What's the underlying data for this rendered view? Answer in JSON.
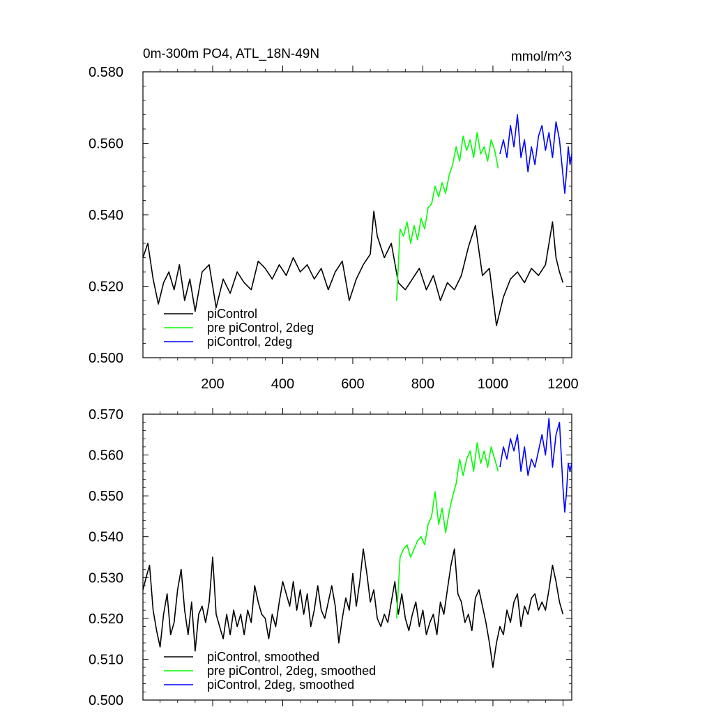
{
  "chart_data": [
    {
      "type": "line",
      "title": "0m-300m PO4, ATL_18N-49N",
      "units": "mmol/m^3",
      "xlim": [
        1,
        1225
      ],
      "ylim": [
        0.5,
        0.58
      ],
      "xticks": [
        200,
        400,
        600,
        800,
        1000,
        1200
      ],
      "xtick_labels": [
        "200",
        "400",
        "600",
        "800",
        "1000",
        "1200"
      ],
      "yticks": [
        0.5,
        0.52,
        0.54,
        0.56,
        0.58
      ],
      "ytick_labels": [
        "0.500",
        "0.520",
        "0.540",
        "0.560",
        "0.580"
      ],
      "legend_position": "bottom-left",
      "series": [
        {
          "name": "piControl",
          "color": "#000000",
          "x": [
            1,
            15,
            30,
            45,
            60,
            75,
            90,
            105,
            120,
            135,
            150,
            170,
            190,
            210,
            230,
            250,
            270,
            290,
            310,
            330,
            350,
            370,
            390,
            410,
            430,
            450,
            470,
            490,
            510,
            530,
            550,
            570,
            590,
            610,
            630,
            650,
            660,
            670,
            690,
            710,
            730,
            750,
            770,
            790,
            810,
            830,
            850,
            870,
            890,
            910,
            930,
            950,
            970,
            990,
            1010,
            1030,
            1050,
            1070,
            1090,
            1110,
            1130,
            1150,
            1170,
            1180,
            1190,
            1200
          ],
          "y": [
            0.528,
            0.532,
            0.522,
            0.515,
            0.521,
            0.524,
            0.519,
            0.526,
            0.516,
            0.522,
            0.513,
            0.524,
            0.526,
            0.514,
            0.522,
            0.518,
            0.524,
            0.521,
            0.519,
            0.527,
            0.525,
            0.522,
            0.526,
            0.523,
            0.528,
            0.524,
            0.526,
            0.522,
            0.525,
            0.519,
            0.524,
            0.527,
            0.516,
            0.522,
            0.526,
            0.529,
            0.541,
            0.534,
            0.528,
            0.532,
            0.521,
            0.519,
            0.522,
            0.525,
            0.519,
            0.523,
            0.516,
            0.521,
            0.519,
            0.523,
            0.531,
            0.537,
            0.523,
            0.525,
            0.509,
            0.517,
            0.522,
            0.524,
            0.521,
            0.525,
            0.523,
            0.526,
            0.538,
            0.528,
            0.524,
            0.521
          ]
        },
        {
          "name": "pre piControl, 2deg",
          "color": "#00ff00",
          "x": [
            725,
            735,
            745,
            755,
            765,
            775,
            785,
            795,
            805,
            815,
            825,
            835,
            845,
            855,
            865,
            875,
            885,
            895,
            905,
            915,
            925,
            935,
            945,
            955,
            965,
            975,
            985,
            995,
            1005,
            1015
          ],
          "y": [
            0.516,
            0.536,
            0.534,
            0.538,
            0.532,
            0.537,
            0.533,
            0.539,
            0.536,
            0.542,
            0.543,
            0.548,
            0.545,
            0.549,
            0.546,
            0.551,
            0.554,
            0.559,
            0.555,
            0.562,
            0.558,
            0.561,
            0.556,
            0.563,
            0.557,
            0.559,
            0.555,
            0.561,
            0.558,
            0.553
          ]
        },
        {
          "name": "piControl, 2deg",
          "color": "#0000ff",
          "x": [
            1020,
            1030,
            1040,
            1050,
            1060,
            1070,
            1080,
            1090,
            1100,
            1110,
            1120,
            1130,
            1140,
            1150,
            1160,
            1170,
            1180,
            1190,
            1200,
            1205,
            1210,
            1215,
            1220,
            1225
          ],
          "y": [
            0.557,
            0.561,
            0.556,
            0.565,
            0.559,
            0.568,
            0.556,
            0.561,
            0.552,
            0.559,
            0.554,
            0.562,
            0.565,
            0.558,
            0.563,
            0.556,
            0.566,
            0.561,
            0.551,
            0.546,
            0.552,
            0.559,
            0.554,
            0.557
          ]
        }
      ],
      "legend": [
        "piControl",
        "pre piControl, 2deg",
        "piControl, 2deg"
      ]
    },
    {
      "type": "line",
      "title": "",
      "units": "",
      "xlim": [
        1,
        1225
      ],
      "ylim": [
        0.5,
        0.57
      ],
      "xticks": [
        200,
        400,
        600,
        800,
        1000,
        1200
      ],
      "xtick_labels": [],
      "yticks": [
        0.5,
        0.51,
        0.52,
        0.53,
        0.54,
        0.55,
        0.56,
        0.57
      ],
      "ytick_labels": [
        "0.500",
        "0.510",
        "0.520",
        "0.530",
        "0.540",
        "0.550",
        "0.560",
        "0.570"
      ],
      "legend_position": "bottom-left",
      "series": [
        {
          "name": "piControl, smoothed",
          "color": "#000000",
          "x": [
            1,
            10,
            20,
            30,
            40,
            50,
            60,
            70,
            80,
            90,
            100,
            110,
            120,
            130,
            140,
            150,
            160,
            170,
            180,
            190,
            200,
            210,
            220,
            230,
            240,
            250,
            260,
            270,
            280,
            290,
            300,
            310,
            320,
            330,
            340,
            350,
            360,
            370,
            380,
            390,
            400,
            410,
            420,
            430,
            440,
            450,
            460,
            470,
            480,
            490,
            500,
            510,
            520,
            530,
            540,
            550,
            560,
            570,
            580,
            590,
            600,
            610,
            620,
            630,
            640,
            650,
            660,
            670,
            680,
            690,
            700,
            710,
            720,
            730,
            740,
            750,
            760,
            770,
            780,
            790,
            800,
            810,
            820,
            830,
            840,
            850,
            860,
            870,
            880,
            890,
            900,
            910,
            920,
            930,
            940,
            950,
            960,
            970,
            980,
            990,
            1000,
            1010,
            1020,
            1030,
            1040,
            1050,
            1060,
            1070,
            1080,
            1090,
            1100,
            1110,
            1120,
            1130,
            1140,
            1150,
            1160,
            1170,
            1180,
            1190,
            1200
          ],
          "y": [
            0.527,
            0.53,
            0.533,
            0.522,
            0.517,
            0.513,
            0.521,
            0.526,
            0.516,
            0.519,
            0.527,
            0.532,
            0.522,
            0.516,
            0.524,
            0.512,
            0.521,
            0.523,
            0.519,
            0.524,
            0.535,
            0.521,
            0.518,
            0.515,
            0.521,
            0.516,
            0.522,
            0.518,
            0.521,
            0.516,
            0.522,
            0.519,
            0.528,
            0.524,
            0.521,
            0.52,
            0.515,
            0.521,
            0.518,
            0.524,
            0.529,
            0.526,
            0.523,
            0.529,
            0.522,
            0.527,
            0.521,
            0.526,
            0.518,
            0.522,
            0.528,
            0.522,
            0.52,
            0.524,
            0.528,
            0.523,
            0.514,
            0.52,
            0.525,
            0.522,
            0.531,
            0.523,
            0.529,
            0.537,
            0.531,
            0.524,
            0.527,
            0.52,
            0.518,
            0.521,
            0.519,
            0.524,
            0.529,
            0.521,
            0.526,
            0.52,
            0.517,
            0.521,
            0.524,
            0.518,
            0.522,
            0.516,
            0.519,
            0.521,
            0.516,
            0.524,
            0.521,
            0.527,
            0.533,
            0.537,
            0.526,
            0.524,
            0.519,
            0.521,
            0.517,
            0.525,
            0.527,
            0.523,
            0.519,
            0.514,
            0.508,
            0.514,
            0.518,
            0.516,
            0.522,
            0.519,
            0.524,
            0.526,
            0.518,
            0.523,
            0.521,
            0.525,
            0.526,
            0.522,
            0.524,
            0.522,
            0.527,
            0.533,
            0.529,
            0.524,
            0.521
          ]
        },
        {
          "name": "pre piControl, 2deg, smoothed",
          "color": "#00ff00",
          "x": [
            725,
            735,
            745,
            755,
            765,
            775,
            785,
            795,
            805,
            815,
            825,
            835,
            845,
            855,
            865,
            875,
            885,
            895,
            905,
            915,
            925,
            935,
            945,
            955,
            965,
            975,
            985,
            995,
            1005,
            1015
          ],
          "y": [
            0.52,
            0.535,
            0.537,
            0.538,
            0.535,
            0.537,
            0.539,
            0.54,
            0.538,
            0.543,
            0.545,
            0.551,
            0.543,
            0.547,
            0.541,
            0.546,
            0.55,
            0.553,
            0.559,
            0.555,
            0.559,
            0.561,
            0.556,
            0.563,
            0.558,
            0.561,
            0.557,
            0.562,
            0.559,
            0.556
          ]
        },
        {
          "name": "piControl, 2deg, smoothed",
          "color": "#0000ff",
          "x": [
            1020,
            1030,
            1040,
            1050,
            1060,
            1070,
            1080,
            1090,
            1100,
            1110,
            1120,
            1130,
            1140,
            1150,
            1160,
            1170,
            1180,
            1190,
            1200,
            1205,
            1210,
            1215,
            1220,
            1225
          ],
          "y": [
            0.557,
            0.562,
            0.559,
            0.564,
            0.561,
            0.565,
            0.556,
            0.562,
            0.555,
            0.559,
            0.557,
            0.561,
            0.565,
            0.56,
            0.569,
            0.557,
            0.565,
            0.568,
            0.552,
            0.546,
            0.551,
            0.558,
            0.556,
            0.558
          ]
        }
      ],
      "legend": [
        "piControl, smoothed",
        "pre piControl, 2deg, smoothed",
        "piControl, 2deg, smoothed"
      ]
    }
  ]
}
